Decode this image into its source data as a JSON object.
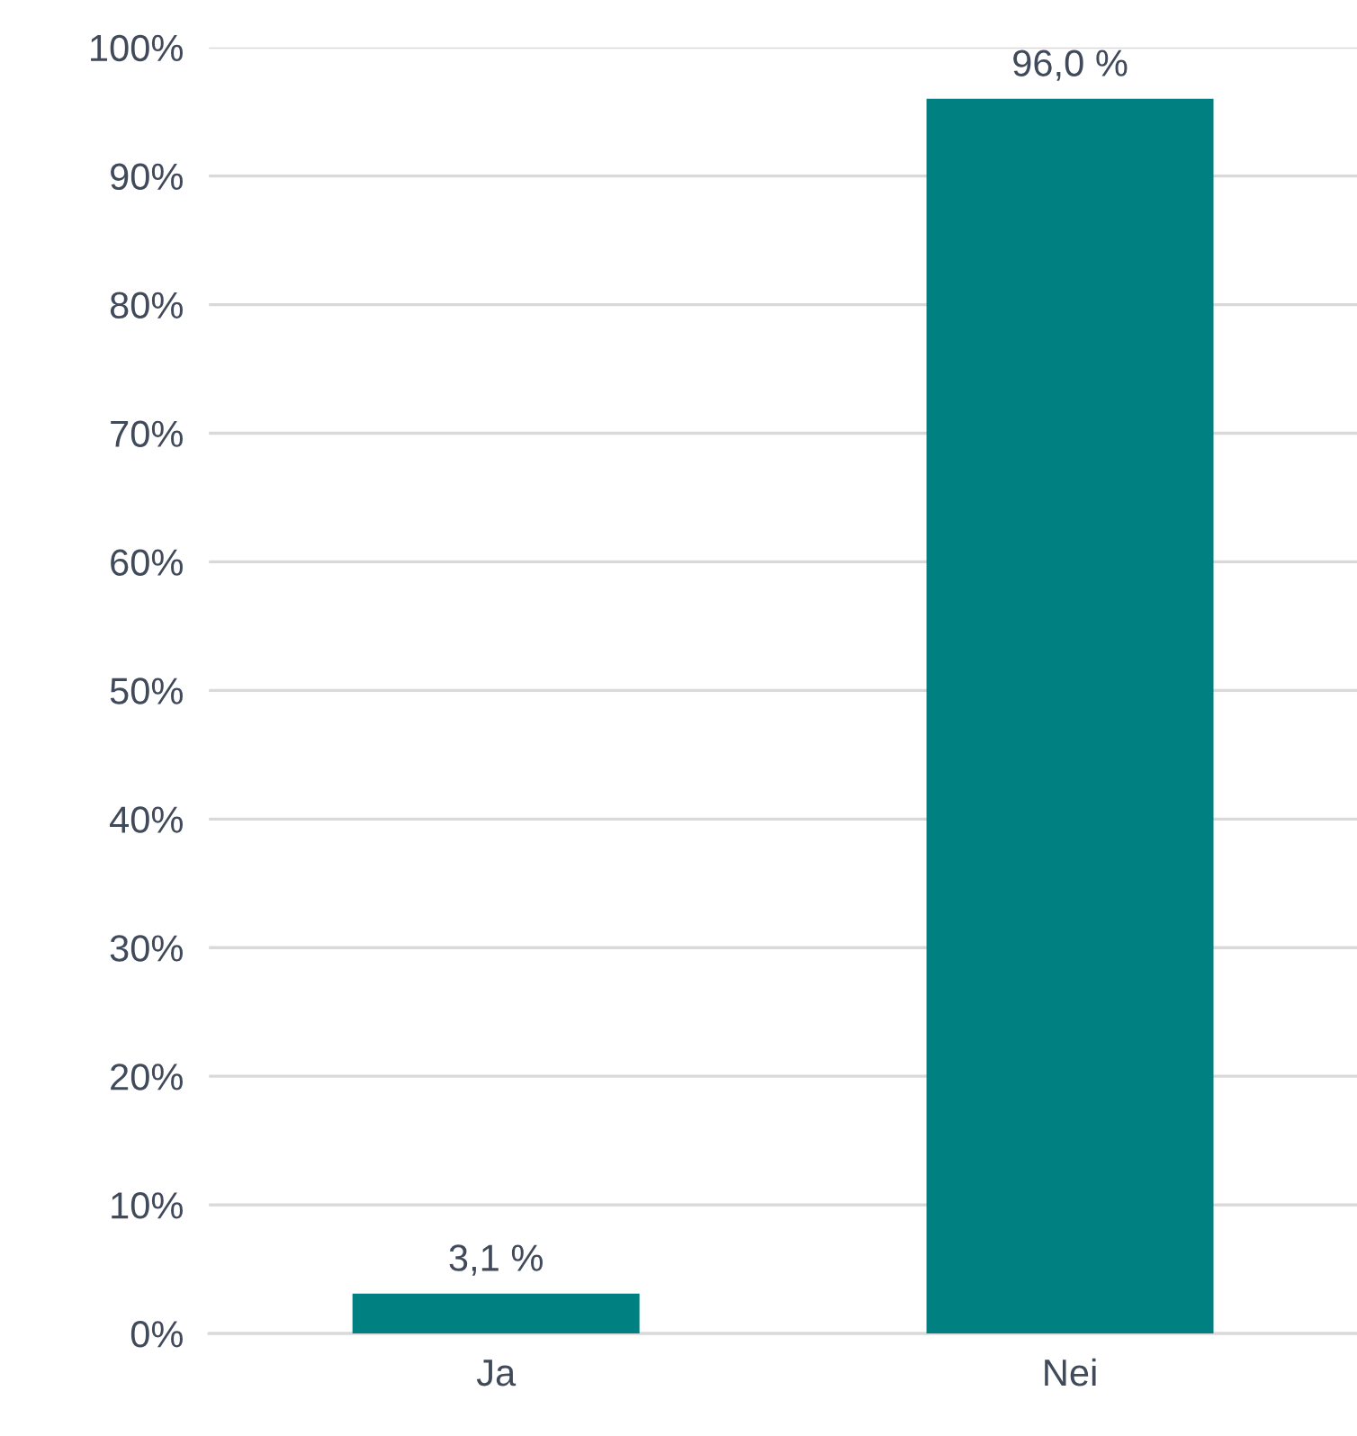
{
  "chart_data": {
    "type": "bar",
    "categories": [
      "Ja",
      "Nei"
    ],
    "values": [
      3.1,
      96.0
    ],
    "color": "#008080",
    "value_labels": [
      "3,1 %",
      "96,0 %"
    ],
    "ylim": [
      0,
      100
    ],
    "yticks": [
      {
        "value": 0,
        "label": "0%"
      },
      {
        "value": 10,
        "label": "10%"
      },
      {
        "value": 20,
        "label": "20%"
      },
      {
        "value": 30,
        "label": "30%"
      },
      {
        "value": 40,
        "label": "40%"
      },
      {
        "value": 50,
        "label": "50%"
      },
      {
        "value": 60,
        "label": "60%"
      },
      {
        "value": 70,
        "label": "70%"
      },
      {
        "value": 80,
        "label": "80%"
      },
      {
        "value": 90,
        "label": "90%"
      },
      {
        "value": 100,
        "label": "100%"
      }
    ],
    "grid": "y",
    "legend": false
  }
}
